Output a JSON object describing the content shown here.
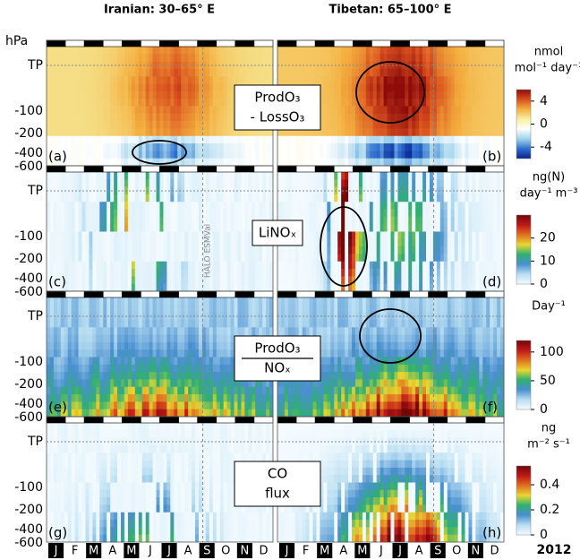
{
  "columns": [
    "Iranian: 30–65° E",
    "Tibetan: 65–100° E"
  ],
  "y_axis": {
    "unit": "hPa",
    "ticks": [
      "TP",
      "-100",
      "-200",
      "-400",
      "-600"
    ]
  },
  "panels": [
    {
      "letters": [
        "(a)",
        "(b)"
      ],
      "label": [
        "ProdO₃",
        "- LossO₃"
      ],
      "colorbar": {
        "unit": [
          "nmol",
          "mol⁻¹ day⁻¹"
        ],
        "lim": [
          -6,
          6
        ],
        "ticks": [
          4,
          0,
          -4
        ],
        "colors": [
          "#08218c",
          "#2f6fd0",
          "#9fd3ec",
          "#ffffff",
          "#f6f0a0",
          "#f4b040",
          "#d9501e",
          "#8c0c0c"
        ]
      }
    },
    {
      "letters": [
        "(c)",
        "(d)"
      ],
      "label": [
        "LiNOₓ"
      ],
      "annotation": "HALO ESMVal",
      "colorbar": {
        "unit": [
          "ng(N)",
          "day⁻¹ m⁻³"
        ],
        "lim": [
          0,
          30
        ],
        "ticks": [
          20,
          10,
          0
        ],
        "colors": [
          "#f4fbff",
          "#b8def2",
          "#4a8fd0",
          "#2fb070",
          "#e8d830",
          "#e07020",
          "#c01818",
          "#700808"
        ]
      }
    },
    {
      "letters": [
        "(e)",
        "(f)"
      ],
      "label": [
        "ProdO₃",
        "NOₓ"
      ],
      "fraction": true,
      "colorbar": {
        "unit": [
          "Day⁻¹"
        ],
        "lim": [
          0,
          120
        ],
        "ticks": [
          100,
          50,
          0
        ],
        "colors": [
          "#f4fbff",
          "#b8def2",
          "#4a8fd0",
          "#2fb070",
          "#e8d830",
          "#e07020",
          "#c01818",
          "#700808"
        ]
      }
    },
    {
      "letters": [
        "(g)",
        "(h)"
      ],
      "label": [
        "CO",
        "flux"
      ],
      "colorbar": {
        "unit": [
          "ng",
          "m⁻² s⁻¹"
        ],
        "lim": [
          0,
          0.55
        ],
        "ticks": [
          0.4,
          0.2,
          0
        ],
        "colors": [
          "#f4fbff",
          "#b8def2",
          "#4a8fd0",
          "#2fb070",
          "#e8d830",
          "#e07020",
          "#c01818",
          "#700808"
        ]
      }
    }
  ],
  "months": [
    "J",
    "F",
    "M",
    "A",
    "M",
    "J",
    "J",
    "A",
    "S",
    "O",
    "N",
    "D"
  ],
  "year": "2012"
}
